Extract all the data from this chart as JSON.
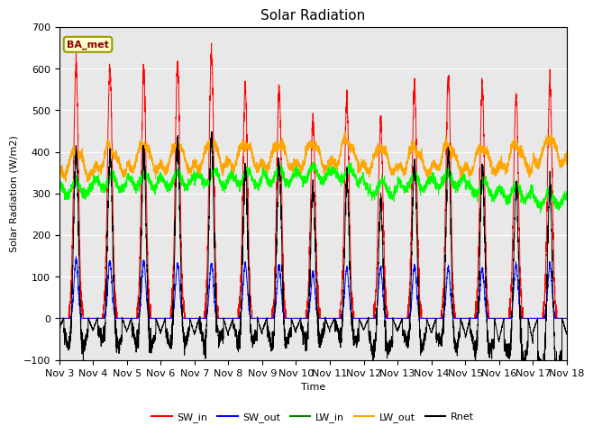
{
  "title": "Solar Radiation",
  "xlabel": "Time",
  "ylabel": "Solar Radiation (W/m2)",
  "ylim": [
    -100,
    700
  ],
  "xlim": [
    0,
    15
  ],
  "x_tick_labels": [
    "Nov 3",
    "Nov 4",
    "Nov 5",
    "Nov 6",
    "Nov 7",
    "Nov 8",
    "Nov 9",
    "Nov 10",
    "Nov 11",
    "Nov 12",
    "Nov 13",
    "Nov 14",
    "Nov 15",
    "Nov 16",
    "Nov 17",
    "Nov 18"
  ],
  "annotation_text": "BA_met",
  "background_color": "#e8e8e8",
  "legend_entries": [
    "SW_in",
    "SW_out",
    "LW_in",
    "LW_out",
    "Rnet"
  ],
  "legend_colors": [
    "red",
    "blue",
    "green",
    "orange",
    "black"
  ],
  "SW_in_peaks": [
    610,
    610,
    590,
    610,
    640,
    560,
    550,
    475,
    520,
    470,
    555,
    580,
    555,
    535,
    565
  ],
  "SW_out_peaks": [
    140,
    138,
    135,
    130,
    130,
    130,
    125,
    110,
    120,
    120,
    125,
    120,
    120,
    130,
    130
  ],
  "LW_in_base": [
    305,
    320,
    325,
    325,
    330,
    330,
    335,
    340,
    340,
    305,
    320,
    325,
    305,
    295,
    280
  ],
  "LW_out_base": [
    345,
    355,
    360,
    360,
    365,
    365,
    365,
    365,
    370,
    355,
    355,
    360,
    355,
    360,
    375
  ],
  "night_rnet": [
    -40,
    -45,
    -50,
    -55,
    -60,
    -55,
    -50,
    -45,
    -40,
    -45,
    -50,
    -55,
    -80,
    -85,
    -55
  ],
  "yticks": [
    -100,
    0,
    100,
    200,
    300,
    400,
    500,
    600,
    700
  ]
}
